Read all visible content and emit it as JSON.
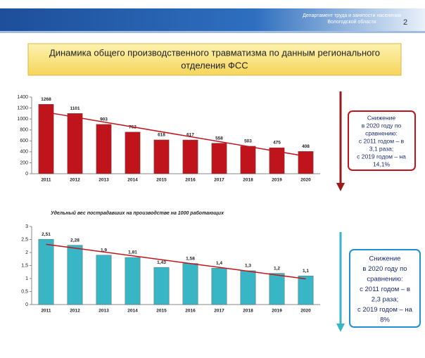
{
  "header": {
    "org_lines": [
      "Департамент труда и занятости населения",
      "Вологодской области"
    ],
    "page": "2"
  },
  "title_lines": [
    "Динамика общего производственного травматизма по данным регионального",
    "отделения ФСС"
  ],
  "chart_data": [
    {
      "type": "bar",
      "categories": [
        "2011",
        "2012",
        "2013",
        "2014",
        "2015",
        "2016",
        "2017",
        "2018",
        "2019",
        "2020"
      ],
      "values": [
        1268,
        1101,
        903,
        762,
        618,
        617,
        558,
        503,
        475,
        408
      ],
      "color": "#c0141c",
      "ylim": [
        0,
        1400
      ],
      "yticks": [
        0,
        200,
        400,
        600,
        800,
        1000,
        1200,
        1400
      ],
      "trend": true
    },
    {
      "type": "bar",
      "title": "Удельный вес пострадавших на производстве на 1000 работающих",
      "categories": [
        "2011",
        "2012",
        "2013",
        "2014",
        "2015",
        "2016",
        "2017",
        "2018",
        "2019",
        "2020"
      ],
      "values": [
        2.51,
        2.28,
        1.9,
        1.81,
        1.43,
        1.58,
        1.4,
        1.3,
        1.2,
        1.1
      ],
      "value_labels": [
        "2,51",
        "2,28",
        "1,9",
        "1,81",
        "1,43",
        "1,58",
        "1,4",
        "1,3",
        "1,2",
        "1,1"
      ],
      "color": "#38b6c6",
      "ylim": [
        0,
        3
      ],
      "yticks": [
        0,
        {
          "value": 0.5,
          "label": "0,5"
        },
        1,
        {
          "value": 1.5,
          "label": "1,5"
        },
        2,
        {
          "value": 2.5,
          "label": "2,5"
        },
        3
      ],
      "trend": true
    }
  ],
  "notes": [
    {
      "lines": [
        "Снижение",
        "в 2020 году по",
        "сравнению:",
        "с 2011 годом – в",
        "3,1 раза;",
        "с 2019 годом – на",
        "14,1%"
      ]
    },
    {
      "lines": [
        "Снижение",
        "в 2020 году по",
        "сравнению:",
        "с 2011 годом – в",
        "2,3 раза;",
        "с 2019 годом – на",
        "8%"
      ]
    }
  ]
}
